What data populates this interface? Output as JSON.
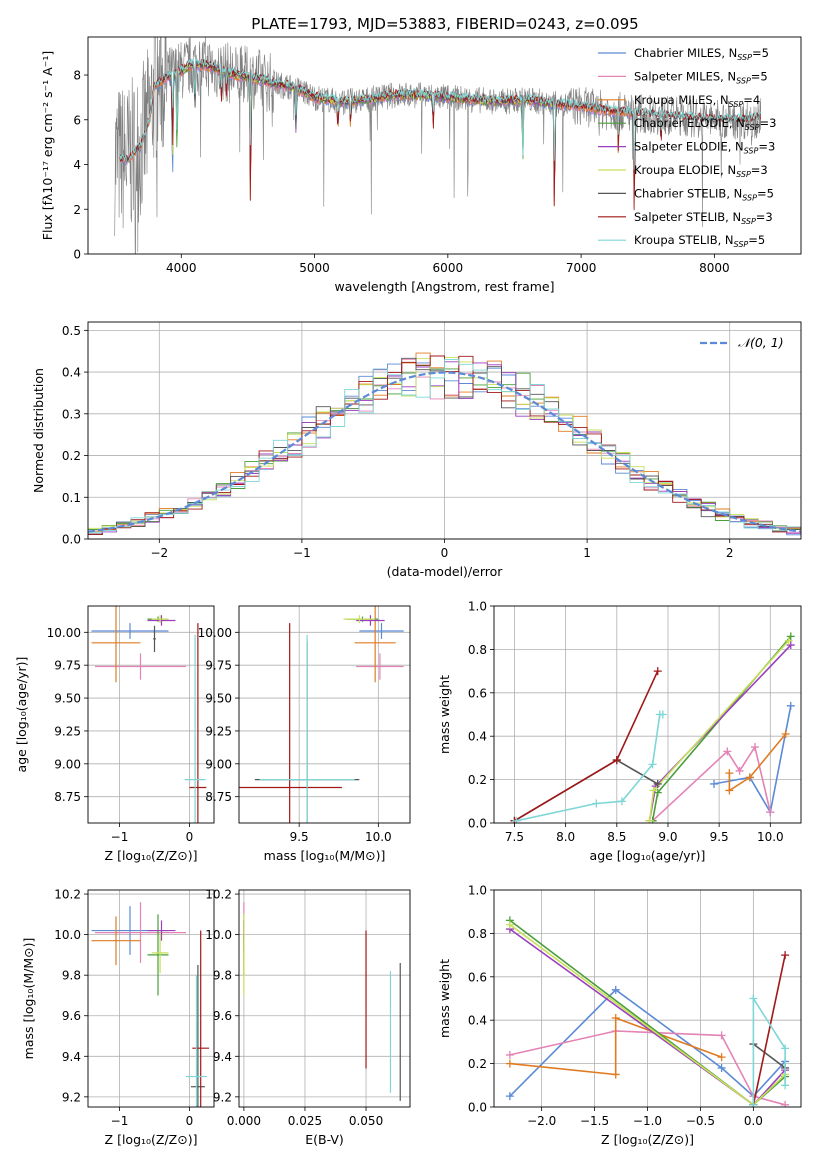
{
  "figure_title": "PLATE=1793, MJD=53883, FIBERID=0243, z=0.095",
  "colors": {
    "Chabrier MILES": "#5b8ad6",
    "Salpeter MILES": "#e383b6",
    "Kroupa MILES": "#e07b22",
    "Chabrier ELODIE": "#4a9e3a",
    "Salpeter ELODIE": "#9c3fbf",
    "Kroupa ELODIE": "#c7e05a",
    "Chabrier STELIB": "#555555",
    "Salpeter STELIB": "#a01818",
    "Kroupa STELIB": "#7fd6d6",
    "data": "#808080",
    "normal": "#5b8ad6"
  },
  "chart_data": [
    {
      "id": "spectrum",
      "type": "line",
      "title": "PLATE=1793, MJD=53883, FIBERID=0243, z=0.095",
      "xlabel": "wavelength [Angstrom, rest frame]",
      "ylabel": "Flux [fλ10⁻¹⁷ erg cm⁻² s⁻¹ A⁻¹]",
      "xlim": [
        3300,
        8650
      ],
      "ylim": [
        0,
        9.7
      ],
      "xticks": [
        4000,
        5000,
        6000,
        7000,
        8000
      ],
      "yticks": [
        0,
        2,
        4,
        6,
        8
      ],
      "legend_position": "top-right",
      "legend": [
        {
          "name": "Chabrier MILES, N",
          "sub": "SSP",
          "suffix": "=5"
        },
        {
          "name": "Salpeter MILES, N",
          "sub": "SSP",
          "suffix": "=5"
        },
        {
          "name": "Kroupa MILES, N",
          "sub": "SSP",
          "suffix": "=4"
        },
        {
          "name": "Chabrier ELODIE, N",
          "sub": "SSP",
          "suffix": "=3"
        },
        {
          "name": "Salpeter ELODIE, N",
          "sub": "SSP",
          "suffix": "=3"
        },
        {
          "name": "Kroupa ELODIE, N",
          "sub": "SSP",
          "suffix": "=3"
        },
        {
          "name": "Chabrier STELIB, N",
          "sub": "SSP",
          "suffix": "=5"
        },
        {
          "name": "Salpeter STELIB, N",
          "sub": "SSP",
          "suffix": "=3"
        },
        {
          "name": "Kroupa STELIB, N",
          "sub": "SSP",
          "suffix": "=5"
        }
      ],
      "continuum": {
        "wavelength": [
          3500,
          3600,
          3700,
          3760,
          3800,
          3900,
          4000,
          4100,
          4200,
          4300,
          4400,
          4500,
          4600,
          4700,
          4800,
          4900,
          5000,
          5200,
          5400,
          5600,
          5800,
          6000,
          6200,
          6400,
          6600,
          6800,
          7000,
          7200,
          7400,
          7600,
          7800,
          8000,
          8200,
          8350
        ],
        "flux": [
          4.3,
          4.2,
          4.9,
          6.0,
          7.5,
          7.9,
          8.2,
          8.5,
          8.4,
          8.2,
          8.0,
          7.9,
          7.8,
          7.6,
          7.5,
          7.3,
          7.0,
          6.8,
          6.9,
          7.1,
          7.1,
          7.0,
          6.9,
          6.8,
          6.9,
          6.7,
          6.6,
          6.4,
          6.3,
          6.2,
          6.1,
          6.0,
          6.0,
          6.1
        ]
      },
      "absorption_dips": [
        {
          "x": 3934,
          "depth": 5.5
        },
        {
          "x": 3968,
          "depth": 4.0
        },
        {
          "x": 4102,
          "depth": 2.5
        },
        {
          "x": 4300,
          "depth": 2.0
        },
        {
          "x": 4340,
          "depth": 1.8
        },
        {
          "x": 4520,
          "depth": 8.0
        },
        {
          "x": 4861,
          "depth": 2.3
        },
        {
          "x": 5175,
          "depth": 2.0
        },
        {
          "x": 5270,
          "depth": 1.5
        },
        {
          "x": 5890,
          "depth": 2.0
        },
        {
          "x": 6563,
          "depth": 3.0
        },
        {
          "x": 6800,
          "depth": 6.7
        },
        {
          "x": 7280,
          "depth": 2.5
        },
        {
          "x": 7400,
          "depth": 6.3
        },
        {
          "x": 7600,
          "depth": 2.0
        }
      ]
    },
    {
      "id": "residuals",
      "type": "histogram",
      "xlabel": "(data-model)/error",
      "ylabel": "Normed distribution",
      "xlim": [
        -2.5,
        2.5
      ],
      "ylim": [
        0,
        0.52
      ],
      "xticks": [
        -2,
        -1,
        0,
        1,
        2
      ],
      "yticks": [
        0.0,
        0.1,
        0.2,
        0.3,
        0.4,
        0.5
      ],
      "bin_width": 0.1,
      "legend_position": "top-right",
      "legend": [
        {
          "name": "𝒩(0, 1)"
        }
      ],
      "grid": true
    },
    {
      "id": "age-vs-Z",
      "type": "errorbar",
      "xlabel": "Z [log₁₀(Z/Z⊙)]",
      "ylabel": "age  [log₁₀(age/yr)]",
      "xlim": [
        -1.45,
        0.35
      ],
      "ylim": [
        8.55,
        10.2
      ],
      "xticks": [
        -1,
        0
      ],
      "yticks": [
        8.75,
        9.0,
        9.25,
        9.5,
        9.75,
        10.0
      ],
      "points": [
        {
          "m": "Chabrier MILES",
          "x": -0.85,
          "xerr": 0.55,
          "y": 10.01,
          "yerr": 0.06
        },
        {
          "m": "Salpeter MILES",
          "x": -0.7,
          "xerr": 0.65,
          "y": 9.74,
          "yerr": 0.1
        },
        {
          "m": "Kroupa MILES",
          "x": -1.05,
          "xerr": 0.35,
          "y": 9.92,
          "yerr": 0.3
        },
        {
          "m": "Chabrier ELODIE",
          "x": -0.45,
          "xerr": 0.15,
          "y": 10.1,
          "yerr": 0.02
        },
        {
          "m": "Salpeter ELODIE",
          "x": -0.4,
          "xerr": 0.2,
          "y": 10.09,
          "yerr": 0.04
        },
        {
          "m": "Kroupa ELODIE",
          "x": -0.42,
          "xerr": 0.12,
          "y": 10.1,
          "yerr": 0.03
        },
        {
          "m": "Chabrier STELIB",
          "x": -0.5,
          "xerr": 0.02,
          "y": 9.95,
          "yerr": 0.1
        },
        {
          "m": "Salpeter STELIB",
          "x": 0.12,
          "xerr": 0.12,
          "y": 8.82,
          "yerr": 1.25
        },
        {
          "m": "Kroupa STELIB",
          "x": 0.08,
          "xerr": 0.15,
          "y": 8.88,
          "yerr": 1.1
        }
      ]
    },
    {
      "id": "age-vs-mass",
      "type": "errorbar",
      "xlabel": "mass [log₁₀(M/M⊙)]",
      "ylabel": "",
      "xlim": [
        9.12,
        10.2
      ],
      "ylim": [
        8.55,
        10.2
      ],
      "xticks": [
        9.5,
        10.0
      ],
      "yticks": [
        8.75,
        9.0,
        9.25,
        9.5,
        9.75,
        10.0
      ],
      "points": [
        {
          "m": "Chabrier MILES",
          "x": 10.02,
          "xerr": 0.14,
          "y": 10.01,
          "yerr": 0.06
        },
        {
          "m": "Salpeter MILES",
          "x": 10.01,
          "xerr": 0.15,
          "y": 9.74,
          "yerr": 0.1
        },
        {
          "m": "Kroupa MILES",
          "x": 9.98,
          "xerr": 0.13,
          "y": 9.92,
          "yerr": 0.3
        },
        {
          "m": "Chabrier ELODIE",
          "x": 9.9,
          "xerr": 0.1,
          "y": 10.1,
          "yerr": 0.02
        },
        {
          "m": "Salpeter ELODIE",
          "x": 9.95,
          "xerr": 0.09,
          "y": 10.09,
          "yerr": 0.04
        },
        {
          "m": "Kroupa ELODIE",
          "x": 9.88,
          "xerr": 0.1,
          "y": 10.1,
          "yerr": 0.03
        },
        {
          "m": "Chabrier STELIB",
          "x": 9.55,
          "xerr": 0.33,
          "y": 8.88,
          "yerr": 1.05
        },
        {
          "m": "Salpeter STELIB",
          "x": 9.44,
          "xerr": 0.33,
          "y": 8.82,
          "yerr": 1.25
        },
        {
          "m": "Kroupa STELIB",
          "x": 9.55,
          "xerr": 0.3,
          "y": 8.88,
          "yerr": 1.1
        }
      ]
    },
    {
      "id": "mass-weight-vs-age",
      "type": "line",
      "xlabel": "age  [log₁₀(age/yr)]",
      "ylabel": "mass weight",
      "xlim": [
        7.3,
        10.3
      ],
      "ylim": [
        0,
        1.0
      ],
      "xticks": [
        7.5,
        8.0,
        8.5,
        9.0,
        9.5,
        10.0
      ],
      "yticks": [
        0.0,
        0.2,
        0.4,
        0.6,
        0.8,
        1.0
      ],
      "series": [
        {
          "m": "Chabrier MILES",
          "x": [
            9.45,
            9.8,
            10.0,
            10.2
          ],
          "y": [
            0.18,
            0.21,
            0.05,
            0.54
          ]
        },
        {
          "m": "Salpeter MILES",
          "x": [
            8.85,
            9.58,
            9.7,
            9.85,
            10.0
          ],
          "y": [
            0.01,
            0.33,
            0.24,
            0.35,
            0.05
          ]
        },
        {
          "m": "Kroupa MILES",
          "x": [
            9.6,
            9.6,
            9.8,
            10.15
          ],
          "y": [
            0.23,
            0.15,
            0.21,
            0.41
          ]
        },
        {
          "m": "Chabrier ELODIE",
          "x": [
            8.85,
            8.9,
            10.2
          ],
          "y": [
            0.01,
            0.14,
            0.86
          ]
        },
        {
          "m": "Salpeter ELODIE",
          "x": [
            8.82,
            8.88,
            10.2
          ],
          "y": [
            0.01,
            0.17,
            0.82
          ]
        },
        {
          "m": "Kroupa ELODIE",
          "x": [
            8.82,
            8.86,
            10.18
          ],
          "y": [
            0.01,
            0.15,
            0.84
          ]
        },
        {
          "m": "Chabrier STELIB",
          "x": [
            7.5,
            8.5,
            8.9
          ],
          "y": [
            0.01,
            0.29,
            0.18
          ]
        },
        {
          "m": "Salpeter STELIB",
          "x": [
            7.5,
            8.5,
            8.9
          ],
          "y": [
            0.01,
            0.29,
            0.7
          ]
        },
        {
          "m": "Kroupa STELIB",
          "x": [
            7.52,
            8.3,
            8.55,
            8.85,
            8.92,
            8.95
          ],
          "y": [
            0.01,
            0.09,
            0.1,
            0.27,
            0.5,
            0.5
          ]
        }
      ]
    },
    {
      "id": "mass-vs-Z",
      "type": "errorbar",
      "xlabel": "Z [log₁₀(Z/Z⊙)]",
      "ylabel": "mass [log₁₀(M/M⊙)]",
      "xlim": [
        -1.45,
        0.35
      ],
      "ylim": [
        9.15,
        10.22
      ],
      "xticks": [
        -1,
        0
      ],
      "yticks": [
        9.2,
        9.4,
        9.6,
        9.8,
        10.0,
        10.2
      ],
      "points": [
        {
          "m": "Chabrier MILES",
          "x": -0.85,
          "xerr": 0.55,
          "y": 10.02,
          "yerr": 0.12
        },
        {
          "m": "Salpeter MILES",
          "x": -0.7,
          "xerr": 0.65,
          "y": 10.01,
          "yerr": 0.15
        },
        {
          "m": "Kroupa MILES",
          "x": -1.05,
          "xerr": 0.35,
          "y": 9.97,
          "yerr": 0.12
        },
        {
          "m": "Chabrier ELODIE",
          "x": -0.45,
          "xerr": 0.15,
          "y": 9.9,
          "yerr": 0.2
        },
        {
          "m": "Salpeter ELODIE",
          "x": -0.4,
          "xerr": 0.2,
          "y": 10.02,
          "yerr": 0.05
        },
        {
          "m": "Kroupa ELODIE",
          "x": -0.42,
          "xerr": 0.12,
          "y": 9.91,
          "yerr": 0.1
        },
        {
          "m": "Chabrier STELIB",
          "x": 0.12,
          "xerr": 0.1,
          "y": 9.25,
          "yerr": 0.6
        },
        {
          "m": "Salpeter STELIB",
          "x": 0.16,
          "xerr": 0.12,
          "y": 9.44,
          "yerr": 0.58
        },
        {
          "m": "Kroupa STELIB",
          "x": 0.1,
          "xerr": 0.15,
          "y": 9.3,
          "yerr": 0.5
        }
      ]
    },
    {
      "id": "mass-vs-EBV",
      "type": "errorbar",
      "xlabel": "E(B-V)",
      "ylabel": "",
      "xlim": [
        -0.002,
        0.068
      ],
      "ylim": [
        9.15,
        10.22
      ],
      "xticks": [
        0.0,
        0.025,
        0.05
      ],
      "xticklabels": [
        "0.000",
        "0.025",
        "0.050"
      ],
      "yticks": [
        9.2,
        9.4,
        9.6,
        9.8,
        10.0,
        10.2
      ],
      "points": [
        {
          "m": "Chabrier MILES",
          "x": 0.0,
          "xerr": 0,
          "y": 10.02,
          "yerr": 0.05
        },
        {
          "m": "Salpeter MILES",
          "x": 0.0,
          "xerr": 0,
          "y": 10.01,
          "yerr": 0.15
        },
        {
          "m": "Kroupa MILES",
          "x": 0.0,
          "xerr": 0,
          "y": 9.97,
          "yerr": 0.05
        },
        {
          "m": "Chabrier ELODIE",
          "x": 0.0,
          "xerr": 0,
          "y": 9.9,
          "yerr": 0.1
        },
        {
          "m": "Salpeter ELODIE",
          "x": 0.0,
          "xerr": 0,
          "y": 10.02,
          "yerr": 0.05
        },
        {
          "m": "Kroupa ELODIE",
          "x": 0.0,
          "xerr": 0,
          "y": 9.9,
          "yerr": 0.2
        },
        {
          "m": "Chabrier STELIB",
          "x": 0.064,
          "xerr": 0,
          "y": 9.52,
          "yerr": 0.34
        },
        {
          "m": "Salpeter STELIB",
          "x": 0.05,
          "xerr": 0,
          "y": 9.68,
          "yerr": 0.34
        },
        {
          "m": "Kroupa STELIB",
          "x": 0.06,
          "xerr": 0,
          "y": 9.52,
          "yerr": 0.3
        }
      ]
    },
    {
      "id": "mass-weight-vs-Z",
      "type": "line",
      "xlabel": "Z [log₁₀(Z/Z⊙)]",
      "ylabel": "mass weight",
      "xlim": [
        -2.45,
        0.45
      ],
      "ylim": [
        0,
        1.0
      ],
      "xticks": [
        -2.0,
        -1.5,
        -1.0,
        -0.5,
        0.0
      ],
      "yticks": [
        0.0,
        0.2,
        0.4,
        0.6,
        0.8,
        1.0
      ],
      "series": [
        {
          "m": "Chabrier MILES",
          "x": [
            -2.3,
            -1.3,
            -0.3,
            0.0,
            0.3
          ],
          "y": [
            0.05,
            0.54,
            0.18,
            0.05,
            0.21
          ]
        },
        {
          "m": "Salpeter MILES",
          "x": [
            -2.3,
            -1.3,
            -0.3,
            0.0,
            0.3
          ],
          "y": [
            0.24,
            0.35,
            0.33,
            0.05,
            0.01
          ]
        },
        {
          "m": "Kroupa MILES",
          "x": [
            -2.3,
            -1.3,
            -1.3,
            -0.3
          ],
          "y": [
            0.2,
            0.15,
            0.41,
            0.23
          ]
        },
        {
          "m": "Chabrier ELODIE",
          "x": [
            -2.3,
            0.0,
            0.3
          ],
          "y": [
            0.86,
            0.01,
            0.14
          ]
        },
        {
          "m": "Salpeter ELODIE",
          "x": [
            -2.3,
            0.0,
            0.3
          ],
          "y": [
            0.82,
            0.01,
            0.17
          ]
        },
        {
          "m": "Kroupa ELODIE",
          "x": [
            -2.3,
            0.0,
            0.3
          ],
          "y": [
            0.84,
            0.01,
            0.15
          ]
        },
        {
          "m": "Chabrier STELIB",
          "x": [
            0.0,
            0.3
          ],
          "y": [
            0.29,
            0.18
          ]
        },
        {
          "m": "Salpeter STELIB",
          "x": [
            0.0,
            0.3
          ],
          "y": [
            0.01,
            0.7
          ]
        },
        {
          "m": "Kroupa STELIB",
          "x": [
            0.0,
            0.0,
            0.3,
            0.3
          ],
          "y": [
            0.01,
            0.5,
            0.27,
            0.1
          ]
        }
      ]
    }
  ]
}
